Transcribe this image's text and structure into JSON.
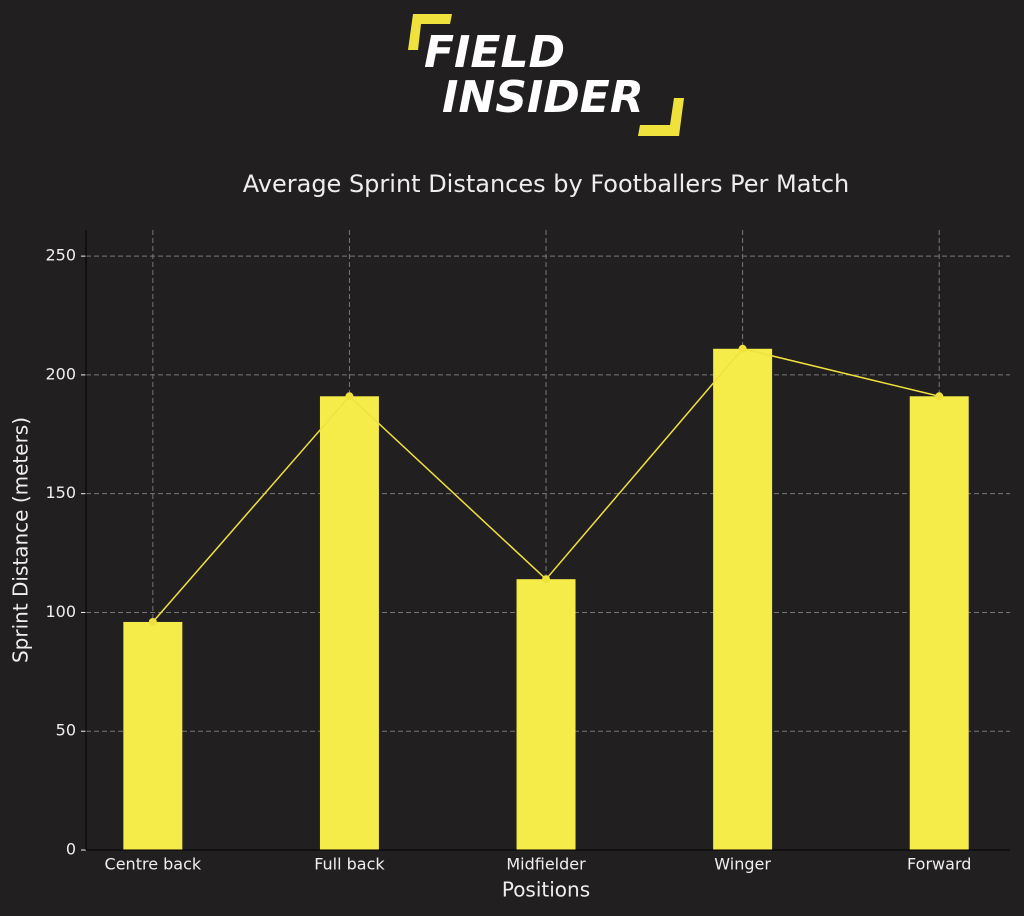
{
  "logo": {
    "lines": [
      "FIELD",
      "INSIDER"
    ]
  },
  "chart_data": {
    "type": "bar",
    "title": "Average Sprint Distances by Footballers Per Match",
    "x_label": "Positions",
    "y_label": "Sprint Distance (meters)",
    "categories": [
      "Centre back",
      "Full back",
      "Midfielder",
      "Winger",
      "Forward"
    ],
    "values": [
      96,
      191,
      114,
      211,
      191
    ],
    "color": "#f5ec4a",
    "line_overlay": true,
    "line_color": "#f0e23c",
    "ylim": [
      0,
      261
    ],
    "yticks": [
      0,
      50,
      100,
      150,
      200,
      250
    ],
    "grid": true
  }
}
